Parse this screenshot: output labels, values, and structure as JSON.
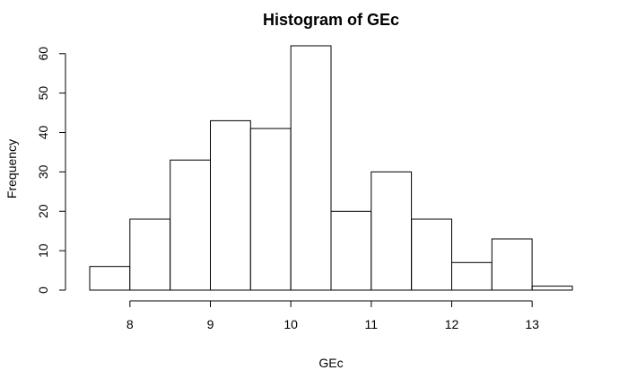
{
  "chart_data": {
    "type": "bar",
    "title": "Histogram of GEc",
    "xlabel": "GEc",
    "ylabel": "Frequency",
    "bins": [
      {
        "start": 7.5,
        "end": 8.0,
        "count": 6
      },
      {
        "start": 8.0,
        "end": 8.5,
        "count": 18
      },
      {
        "start": 8.5,
        "end": 9.0,
        "count": 33
      },
      {
        "start": 9.0,
        "end": 9.5,
        "count": 43
      },
      {
        "start": 9.5,
        "end": 10.0,
        "count": 41
      },
      {
        "start": 10.0,
        "end": 10.5,
        "count": 62
      },
      {
        "start": 10.5,
        "end": 11.0,
        "count": 20
      },
      {
        "start": 11.0,
        "end": 11.5,
        "count": 30
      },
      {
        "start": 11.5,
        "end": 12.0,
        "count": 18
      },
      {
        "start": 12.0,
        "end": 12.5,
        "count": 7
      },
      {
        "start": 12.5,
        "end": 13.0,
        "count": 13
      },
      {
        "start": 13.0,
        "end": 13.5,
        "count": 1
      }
    ],
    "xticks": [
      8,
      9,
      10,
      11,
      12,
      13
    ],
    "yticks": [
      0,
      10,
      20,
      30,
      40,
      50,
      60
    ],
    "xlim": [
      7.5,
      13.5
    ],
    "ylim": [
      0,
      62
    ],
    "grid": false,
    "legend": "none"
  }
}
